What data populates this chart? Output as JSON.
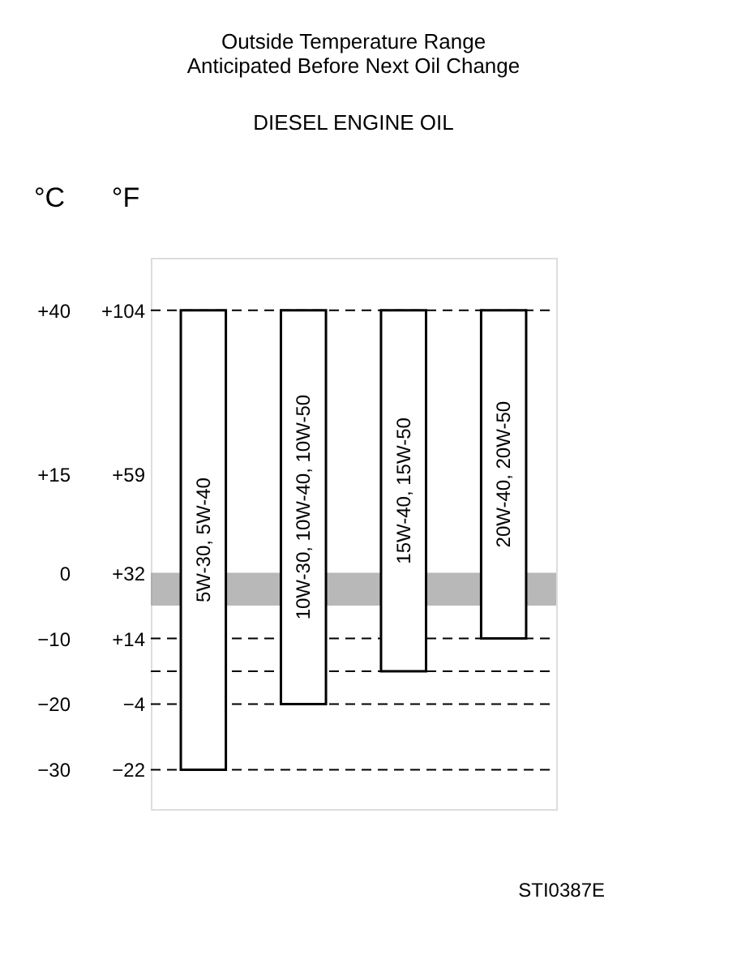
{
  "chart_data": {
    "type": "bar",
    "title": [
      "Outside Temperature Range",
      "Anticipated Before Next Oil Change"
    ],
    "subtitle": "DIESEL ENGINE OIL",
    "categories": [
      "5W-30, 5W-40",
      "10W-30, 10W-40, 10W-50",
      "15W-40, 15W-50",
      "20W-40, 20W-50"
    ],
    "base": [
      -30,
      -20,
      -15,
      -10
    ],
    "values": [
      70,
      60,
      55,
      50
    ],
    "color": "#ffffff",
    "ylabel": "°C",
    "y2label": "°F",
    "ylim": [
      -36,
      48
    ],
    "yticks": [
      {
        "value": 40,
        "label": "+40"
      },
      {
        "value": 15,
        "label": "+15"
      },
      0,
      {
        "value": -10,
        "label": "−10"
      },
      {
        "value": -20,
        "label": "−20"
      },
      {
        "value": -30,
        "label": "−30"
      }
    ],
    "y2lim": [
      -32.8,
      118.4
    ],
    "y2ticks": [
      {
        "value": 104,
        "label": "+104"
      },
      {
        "value": 59,
        "label": "+59"
      },
      {
        "value": 32,
        "label": "+32"
      },
      {
        "value": 14,
        "label": "+14"
      },
      {
        "value": -4,
        "label": "−4"
      },
      {
        "value": -22,
        "label": "−22"
      }
    ],
    "ref_lines": [
      {
        "axis": "y",
        "value": 40,
        "line_style": "dashed"
      },
      {
        "axis": "y",
        "value": -10,
        "line_style": "dashed"
      },
      {
        "axis": "y",
        "value": -15,
        "line_style": "dashed"
      },
      {
        "axis": "y",
        "value": -20,
        "line_style": "dashed"
      },
      {
        "axis": "y",
        "value": -30,
        "line_style": "dashed"
      }
    ],
    "bands": [
      {
        "axis": "y",
        "from": 0,
        "to": -5,
        "color": "#9a9a9a"
      }
    ],
    "grid": false,
    "annotations": [
      "STI0387E"
    ]
  }
}
